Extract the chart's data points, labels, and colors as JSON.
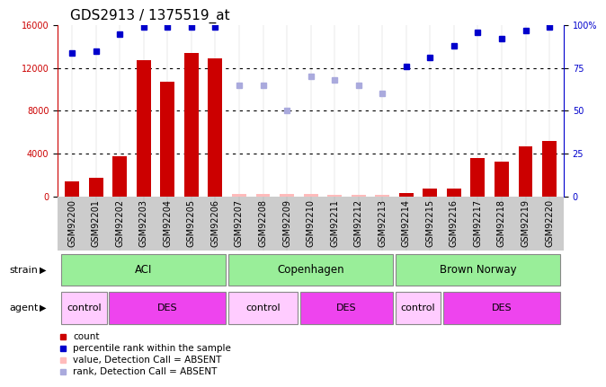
{
  "title": "GDS2913 / 1375519_at",
  "samples": [
    "GSM92200",
    "GSM92201",
    "GSM92202",
    "GSM92203",
    "GSM92204",
    "GSM92205",
    "GSM92206",
    "GSM92207",
    "GSM92208",
    "GSM92209",
    "GSM92210",
    "GSM92211",
    "GSM92212",
    "GSM92213",
    "GSM92214",
    "GSM92215",
    "GSM92216",
    "GSM92217",
    "GSM92218",
    "GSM92219",
    "GSM92220"
  ],
  "count_values": [
    1400,
    1700,
    3700,
    12700,
    10700,
    13400,
    12900,
    200,
    200,
    250,
    200,
    100,
    100,
    100,
    300,
    700,
    700,
    3600,
    3200,
    4700,
    5200
  ],
  "count_absent": [
    false,
    false,
    false,
    false,
    false,
    false,
    false,
    true,
    true,
    true,
    true,
    true,
    true,
    true,
    false,
    false,
    false,
    false,
    false,
    false,
    false
  ],
  "percentile_values": [
    84,
    85,
    95,
    99,
    99,
    99,
    99,
    65,
    65,
    50,
    70,
    68,
    65,
    60,
    76,
    81,
    88,
    96,
    92,
    97,
    99
  ],
  "percentile_absent": [
    false,
    false,
    false,
    false,
    false,
    false,
    false,
    true,
    true,
    true,
    true,
    true,
    true,
    true,
    false,
    false,
    false,
    false,
    false,
    false,
    false
  ],
  "ylim_left": [
    0,
    16000
  ],
  "ylim_right": [
    0,
    100
  ],
  "yticks_left": [
    0,
    4000,
    8000,
    12000,
    16000
  ],
  "yticks_right": [
    0,
    25,
    50,
    75,
    100
  ],
  "bar_color": "#cc0000",
  "dot_color_present": "#0000cc",
  "dot_color_absent": "#aaaadd",
  "bar_color_absent": "#ffbbbb",
  "strain_labels": [
    "ACI",
    "Copenhagen",
    "Brown Norway"
  ],
  "strain_ranges": [
    [
      0,
      6
    ],
    [
      7,
      13
    ],
    [
      14,
      20
    ]
  ],
  "strain_color": "#99ee99",
  "agent_labels_text": [
    "control",
    "DES",
    "control",
    "DES",
    "control",
    "DES"
  ],
  "agent_ranges": [
    [
      0,
      1
    ],
    [
      2,
      6
    ],
    [
      7,
      9
    ],
    [
      10,
      13
    ],
    [
      14,
      15
    ],
    [
      16,
      20
    ]
  ],
  "agent_colors": [
    "#ffccff",
    "#ee44ee",
    "#ffccff",
    "#ee44ee",
    "#ffccff",
    "#ee44ee"
  ],
  "bg_color": "#ffffff",
  "xtick_bg": "#cccccc",
  "title_fontsize": 11,
  "tick_fontsize": 7,
  "label_fontsize": 8
}
